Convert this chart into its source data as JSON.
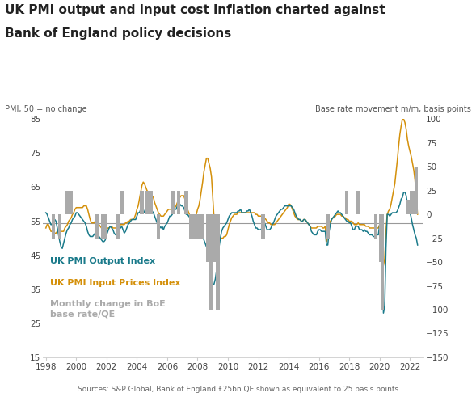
{
  "title_line1": "UK PMI output and input cost inflation charted against",
  "title_line2": "Bank of England policy decisions",
  "ylabel_left": "PMI, 50 = no change",
  "ylabel_right": "Base rate movement m/m, basis points",
  "source": "Sources: S&P Global, Bank of England.£25bn QE shown as equivalent to 25 basis points",
  "ylim_left": [
    15,
    85
  ],
  "ylim_right": [
    -150,
    100
  ],
  "yticks_left": [
    15,
    25,
    35,
    45,
    55,
    65,
    75,
    85
  ],
  "yticks_right": [
    -150,
    -125,
    -100,
    -75,
    -50,
    -25,
    0,
    25,
    50,
    75,
    100
  ],
  "color_output": "#1a7a8a",
  "color_input": "#d4900a",
  "color_bars": "#aaaaaa",
  "color_hline": "#999999",
  "hline_y": 54.5,
  "dates": [
    1998.0,
    1998.083,
    1998.167,
    1998.25,
    1998.333,
    1998.417,
    1998.5,
    1998.583,
    1998.667,
    1998.75,
    1998.833,
    1998.917,
    1999.0,
    1999.083,
    1999.167,
    1999.25,
    1999.333,
    1999.417,
    1999.5,
    1999.583,
    1999.667,
    1999.75,
    1999.833,
    1999.917,
    2000.0,
    2000.083,
    2000.167,
    2000.25,
    2000.333,
    2000.417,
    2000.5,
    2000.583,
    2000.667,
    2000.75,
    2000.833,
    2000.917,
    2001.0,
    2001.083,
    2001.167,
    2001.25,
    2001.333,
    2001.417,
    2001.5,
    2001.583,
    2001.667,
    2001.75,
    2001.833,
    2001.917,
    2002.0,
    2002.083,
    2002.167,
    2002.25,
    2002.333,
    2002.417,
    2002.5,
    2002.583,
    2002.667,
    2002.75,
    2002.833,
    2002.917,
    2003.0,
    2003.083,
    2003.167,
    2003.25,
    2003.333,
    2003.417,
    2003.5,
    2003.583,
    2003.667,
    2003.75,
    2003.833,
    2003.917,
    2004.0,
    2004.083,
    2004.167,
    2004.25,
    2004.333,
    2004.417,
    2004.5,
    2004.583,
    2004.667,
    2004.75,
    2004.833,
    2004.917,
    2005.0,
    2005.083,
    2005.167,
    2005.25,
    2005.333,
    2005.417,
    2005.5,
    2005.583,
    2005.667,
    2005.75,
    2005.833,
    2005.917,
    2006.0,
    2006.083,
    2006.167,
    2006.25,
    2006.333,
    2006.417,
    2006.5,
    2006.583,
    2006.667,
    2006.75,
    2006.833,
    2006.917,
    2007.0,
    2007.083,
    2007.167,
    2007.25,
    2007.333,
    2007.417,
    2007.5,
    2007.583,
    2007.667,
    2007.75,
    2007.833,
    2007.917,
    2008.0,
    2008.083,
    2008.167,
    2008.25,
    2008.333,
    2008.417,
    2008.5,
    2008.583,
    2008.667,
    2008.75,
    2008.833,
    2008.917,
    2009.0,
    2009.083,
    2009.167,
    2009.25,
    2009.333,
    2009.417,
    2009.5,
    2009.583,
    2009.667,
    2009.75,
    2009.833,
    2009.917,
    2010.0,
    2010.083,
    2010.167,
    2010.25,
    2010.333,
    2010.417,
    2010.5,
    2010.583,
    2010.667,
    2010.75,
    2010.833,
    2010.917,
    2011.0,
    2011.083,
    2011.167,
    2011.25,
    2011.333,
    2011.417,
    2011.5,
    2011.583,
    2011.667,
    2011.75,
    2011.833,
    2011.917,
    2012.0,
    2012.083,
    2012.167,
    2012.25,
    2012.333,
    2012.417,
    2012.5,
    2012.583,
    2012.667,
    2012.75,
    2012.833,
    2012.917,
    2013.0,
    2013.083,
    2013.167,
    2013.25,
    2013.333,
    2013.417,
    2013.5,
    2013.583,
    2013.667,
    2013.75,
    2013.833,
    2013.917,
    2014.0,
    2014.083,
    2014.167,
    2014.25,
    2014.333,
    2014.417,
    2014.5,
    2014.583,
    2014.667,
    2014.75,
    2014.833,
    2014.917,
    2015.0,
    2015.083,
    2015.167,
    2015.25,
    2015.333,
    2015.417,
    2015.5,
    2015.583,
    2015.667,
    2015.75,
    2015.833,
    2015.917,
    2016.0,
    2016.083,
    2016.167,
    2016.25,
    2016.333,
    2016.417,
    2016.5,
    2016.583,
    2016.667,
    2016.75,
    2016.833,
    2016.917,
    2017.0,
    2017.083,
    2017.167,
    2017.25,
    2017.333,
    2017.417,
    2017.5,
    2017.583,
    2017.667,
    2017.75,
    2017.833,
    2017.917,
    2018.0,
    2018.083,
    2018.167,
    2018.25,
    2018.333,
    2018.417,
    2018.5,
    2018.583,
    2018.667,
    2018.75,
    2018.833,
    2018.917,
    2019.0,
    2019.083,
    2019.167,
    2019.25,
    2019.333,
    2019.417,
    2019.5,
    2019.583,
    2019.667,
    2019.75,
    2019.833,
    2019.917,
    2020.0,
    2020.083,
    2020.167,
    2020.25,
    2020.333,
    2020.417,
    2020.5,
    2020.583,
    2020.667,
    2020.75,
    2020.833,
    2020.917,
    2021.0,
    2021.083,
    2021.167,
    2021.25,
    2021.333,
    2021.417,
    2021.5,
    2021.583,
    2021.667,
    2021.75,
    2021.833,
    2021.917,
    2022.0,
    2022.083,
    2022.167,
    2022.25,
    2022.333,
    2022.417,
    2022.5
  ],
  "pmi_output": [
    57.5,
    57.0,
    56.0,
    55.0,
    54.0,
    54.0,
    55.0,
    55.5,
    55.0,
    53.0,
    51.0,
    49.0,
    47.5,
    47.0,
    48.5,
    50.0,
    51.5,
    52.5,
    53.0,
    54.0,
    54.5,
    55.5,
    56.0,
    56.5,
    57.5,
    57.5,
    57.0,
    56.5,
    56.0,
    55.5,
    55.0,
    54.5,
    53.5,
    52.0,
    51.0,
    50.5,
    50.5,
    50.5,
    51.0,
    51.5,
    51.5,
    51.5,
    50.5,
    50.0,
    49.5,
    49.0,
    49.0,
    49.5,
    51.0,
    52.0,
    53.0,
    53.5,
    53.0,
    52.5,
    51.5,
    51.0,
    51.0,
    52.0,
    52.5,
    53.0,
    53.5,
    52.5,
    51.5,
    52.0,
    53.0,
    54.0,
    54.5,
    55.0,
    55.5,
    55.5,
    55.5,
    55.5,
    56.5,
    57.5,
    57.5,
    58.5,
    58.5,
    58.5,
    57.5,
    57.5,
    57.5,
    57.5,
    57.5,
    58.0,
    58.0,
    57.5,
    56.5,
    55.5,
    54.5,
    54.5,
    53.5,
    53.0,
    53.5,
    52.5,
    53.5,
    54.0,
    54.5,
    55.5,
    56.5,
    56.5,
    57.0,
    58.0,
    58.5,
    58.5,
    59.5,
    59.5,
    60.0,
    59.5,
    59.5,
    59.0,
    58.0,
    57.0,
    57.0,
    56.5,
    56.0,
    55.5,
    55.5,
    55.5,
    55.0,
    54.5,
    53.5,
    52.5,
    52.0,
    51.0,
    50.5,
    49.5,
    48.5,
    47.5,
    46.5,
    44.5,
    41.5,
    38.5,
    36.5,
    36.5,
    38.0,
    40.5,
    44.0,
    47.5,
    50.0,
    52.0,
    53.0,
    53.5,
    54.0,
    54.5,
    55.5,
    56.5,
    57.0,
    57.5,
    57.5,
    57.5,
    57.5,
    57.5,
    58.0,
    58.0,
    58.5,
    57.5,
    57.5,
    57.5,
    57.5,
    58.0,
    58.0,
    58.5,
    57.5,
    56.5,
    55.0,
    54.0,
    53.0,
    53.0,
    52.5,
    52.5,
    52.5,
    53.0,
    54.0,
    54.5,
    53.5,
    52.5,
    52.5,
    52.5,
    53.0,
    54.0,
    54.5,
    55.5,
    56.5,
    57.0,
    57.5,
    58.0,
    58.5,
    58.5,
    59.0,
    59.5,
    59.5,
    59.5,
    59.5,
    59.5,
    59.5,
    59.0,
    58.5,
    57.5,
    56.5,
    56.0,
    55.5,
    55.5,
    55.0,
    55.0,
    55.5,
    55.5,
    55.0,
    54.5,
    54.0,
    53.5,
    52.0,
    51.5,
    51.0,
    51.0,
    51.0,
    52.0,
    52.5,
    52.5,
    52.0,
    52.0,
    52.0,
    52.0,
    48.0,
    48.0,
    52.0,
    54.0,
    55.5,
    56.0,
    56.5,
    57.0,
    57.5,
    58.0,
    57.5,
    57.5,
    57.0,
    56.5,
    56.0,
    55.5,
    55.0,
    55.0,
    54.5,
    54.5,
    53.5,
    52.5,
    52.5,
    53.5,
    53.5,
    53.5,
    52.5,
    52.5,
    52.5,
    52.0,
    52.5,
    52.0,
    52.0,
    51.5,
    51.0,
    51.0,
    51.0,
    50.5,
    50.5,
    50.5,
    51.0,
    51.0,
    54.0,
    54.0,
    54.5,
    28.0,
    30.0,
    47.0,
    57.0,
    57.0,
    56.5,
    57.0,
    57.5,
    57.5,
    57.5,
    57.5,
    58.0,
    59.0,
    60.0,
    61.5,
    62.0,
    63.5,
    63.5,
    62.5,
    60.0,
    59.0,
    57.5,
    56.0,
    54.0,
    52.5,
    51.0,
    50.0,
    48.0
  ],
  "pmi_input": [
    53.0,
    54.0,
    54.0,
    53.0,
    52.0,
    52.0,
    51.5,
    51.5,
    51.5,
    52.0,
    52.0,
    52.0,
    52.0,
    52.0,
    52.0,
    53.0,
    53.5,
    54.0,
    55.0,
    55.5,
    56.0,
    57.0,
    57.5,
    58.5,
    59.0,
    59.0,
    59.0,
    59.0,
    59.0,
    59.0,
    59.5,
    59.5,
    59.5,
    58.5,
    57.0,
    55.5,
    54.5,
    54.5,
    54.5,
    55.0,
    55.0,
    55.0,
    54.0,
    53.5,
    53.0,
    52.5,
    52.5,
    52.5,
    52.5,
    53.0,
    53.0,
    53.5,
    53.5,
    53.0,
    53.0,
    53.0,
    53.0,
    53.5,
    53.5,
    54.0,
    54.0,
    54.0,
    54.0,
    54.5,
    54.5,
    55.0,
    55.0,
    55.5,
    55.5,
    55.5,
    56.0,
    57.0,
    58.5,
    59.5,
    61.5,
    63.5,
    65.5,
    66.5,
    66.0,
    65.0,
    64.0,
    63.5,
    63.5,
    63.5,
    62.5,
    62.0,
    60.5,
    59.5,
    58.5,
    57.5,
    57.0,
    56.5,
    56.5,
    56.5,
    57.0,
    57.5,
    58.0,
    58.5,
    58.5,
    58.5,
    58.5,
    59.0,
    59.0,
    59.5,
    60.5,
    61.5,
    62.0,
    62.5,
    62.5,
    62.5,
    61.5,
    60.0,
    58.5,
    57.5,
    56.5,
    56.0,
    56.0,
    56.5,
    56.5,
    57.0,
    58.5,
    59.5,
    61.5,
    64.0,
    66.5,
    69.5,
    71.5,
    73.5,
    73.5,
    72.0,
    70.5,
    68.0,
    62.0,
    56.0,
    52.5,
    50.5,
    50.0,
    50.0,
    50.0,
    50.0,
    50.0,
    50.5,
    50.5,
    51.0,
    52.5,
    54.0,
    55.0,
    56.0,
    56.5,
    57.0,
    57.0,
    57.0,
    57.5,
    57.5,
    57.5,
    57.5,
    57.5,
    57.5,
    57.5,
    57.5,
    57.5,
    57.5,
    57.5,
    57.5,
    57.5,
    57.5,
    57.0,
    57.0,
    56.5,
    56.5,
    56.5,
    56.5,
    56.0,
    56.0,
    55.5,
    55.0,
    54.5,
    54.5,
    54.0,
    54.0,
    54.0,
    54.0,
    54.5,
    55.0,
    55.5,
    56.0,
    56.5,
    57.0,
    57.5,
    58.0,
    58.5,
    59.0,
    60.0,
    60.0,
    59.5,
    58.5,
    57.5,
    56.5,
    56.0,
    55.5,
    55.5,
    55.5,
    55.0,
    55.0,
    55.5,
    55.5,
    55.0,
    54.5,
    54.0,
    53.5,
    53.0,
    53.0,
    53.0,
    53.0,
    53.0,
    53.5,
    53.5,
    53.5,
    53.5,
    53.0,
    53.0,
    53.5,
    49.0,
    50.5,
    54.0,
    55.0,
    55.5,
    56.0,
    56.0,
    56.5,
    57.0,
    57.0,
    57.0,
    57.0,
    56.5,
    56.5,
    56.0,
    56.0,
    55.5,
    55.5,
    55.0,
    55.0,
    55.0,
    54.5,
    54.0,
    54.0,
    54.0,
    54.5,
    54.0,
    54.0,
    54.0,
    54.0,
    54.0,
    53.5,
    53.5,
    53.5,
    53.0,
    53.0,
    53.0,
    53.0,
    53.0,
    52.5,
    53.0,
    53.0,
    54.0,
    54.0,
    54.5,
    42.0,
    44.0,
    52.0,
    57.0,
    58.0,
    58.5,
    60.0,
    62.0,
    64.0,
    66.0,
    69.5,
    73.0,
    77.0,
    80.5,
    83.0,
    85.0,
    85.0,
    84.0,
    82.0,
    79.0,
    77.0,
    75.5,
    74.0,
    72.0,
    70.0,
    67.0,
    62.0,
    57.0
  ],
  "boe_events": [
    {
      "date": 1998.5,
      "change": -25
    },
    {
      "date": 1998.917,
      "change": -25
    },
    {
      "date": 1999.417,
      "change": 25
    },
    {
      "date": 1999.667,
      "change": 25
    },
    {
      "date": 2001.333,
      "change": -25
    },
    {
      "date": 2001.75,
      "change": -25
    },
    {
      "date": 2001.917,
      "change": -25
    },
    {
      "date": 2002.75,
      "change": -25
    },
    {
      "date": 2003.0,
      "change": 25
    },
    {
      "date": 2004.333,
      "change": 25
    },
    {
      "date": 2004.667,
      "change": 25
    },
    {
      "date": 2004.917,
      "change": 25
    },
    {
      "date": 2005.417,
      "change": -25
    },
    {
      "date": 2006.333,
      "change": 25
    },
    {
      "date": 2006.75,
      "change": 25
    },
    {
      "date": 2007.25,
      "change": 25
    },
    {
      "date": 2007.583,
      "change": -25
    },
    {
      "date": 2007.75,
      "change": -25
    },
    {
      "date": 2007.917,
      "change": -25
    },
    {
      "date": 2008.083,
      "change": -25
    },
    {
      "date": 2008.25,
      "change": -25
    },
    {
      "date": 2008.667,
      "change": -50
    },
    {
      "date": 2008.75,
      "change": -50
    },
    {
      "date": 2008.917,
      "change": -100
    },
    {
      "date": 2009.083,
      "change": -50
    },
    {
      "date": 2009.167,
      "change": -50
    },
    {
      "date": 2009.25,
      "change": -25
    },
    {
      "date": 2009.333,
      "change": -100
    },
    {
      "date": 2012.333,
      "change": -25
    },
    {
      "date": 2016.583,
      "change": -25
    },
    {
      "date": 2017.833,
      "change": 25
    },
    {
      "date": 2018.583,
      "change": 25
    },
    {
      "date": 2019.75,
      "change": -25
    },
    {
      "date": 2020.083,
      "change": -50
    },
    {
      "date": 2020.167,
      "change": -100
    },
    {
      "date": 2021.917,
      "change": 15
    },
    {
      "date": 2022.083,
      "change": 25
    },
    {
      "date": 2022.25,
      "change": 25
    },
    {
      "date": 2022.417,
      "change": 50
    }
  ],
  "xlim": [
    1997.8,
    2022.9
  ],
  "xticks": [
    1998,
    2000,
    2002,
    2004,
    2006,
    2008,
    2010,
    2012,
    2014,
    2016,
    2018,
    2020,
    2022
  ],
  "bar_width": 0.25,
  "figsize": [
    5.89,
    4.91
  ],
  "dpi": 100
}
